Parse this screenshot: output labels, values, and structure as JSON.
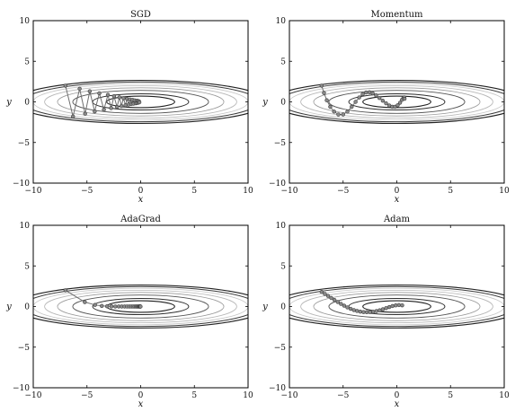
{
  "chart_data": [
    {
      "type": "line",
      "title": "SGD",
      "xlabel": "x",
      "ylabel": "y",
      "xlim": [
        -10,
        10
      ],
      "ylim": [
        -10,
        10
      ],
      "xticks": [
        "−10",
        "−5",
        "0",
        "5",
        "10"
      ],
      "yticks": [
        "10",
        "5",
        "0",
        "−5",
        "−10"
      ],
      "contour_levels": [
        0.5,
        1,
        2,
        3,
        4,
        5,
        6,
        7
      ],
      "series": [
        {
          "x": [
            -7.0,
            -6.3,
            -5.68,
            -5.17,
            -4.74,
            -4.28,
            -3.85,
            -3.42,
            -3.05,
            -2.75,
            -2.48,
            -2.2,
            -1.98,
            -1.79,
            -1.6,
            -1.41,
            -1.27,
            -1.12,
            -1.0,
            -0.88,
            -0.76,
            -0.66,
            -0.56,
            -0.46,
            -0.38,
            -0.32,
            -0.26,
            -0.2,
            -0.16,
            -0.12
          ],
          "y": [
            2.0,
            -1.8,
            1.62,
            -1.46,
            1.31,
            -1.18,
            1.06,
            -0.95,
            0.86,
            -0.77,
            0.69,
            -0.62,
            0.56,
            -0.5,
            0.45,
            -0.41,
            0.37,
            -0.33,
            0.3,
            -0.27,
            0.24,
            -0.22,
            0.19,
            -0.17,
            0.15,
            -0.13,
            0.11,
            -0.09,
            0.07,
            -0.05
          ]
        }
      ]
    },
    {
      "type": "line",
      "title": "Momentum",
      "xlabel": "x",
      "ylabel": "y",
      "xlim": [
        -10,
        10
      ],
      "ylim": [
        -10,
        10
      ],
      "xticks": [
        "−10",
        "−5",
        "0",
        "5",
        "10"
      ],
      "yticks": [
        "10",
        "5",
        "0",
        "−5",
        "−10"
      ],
      "contour_levels": [
        0.5,
        1,
        2,
        3,
        4,
        5,
        6,
        7
      ],
      "series": [
        {
          "x": [
            -7.0,
            -6.78,
            -6.52,
            -6.2,
            -5.84,
            -5.44,
            -5.0,
            -4.6,
            -4.2,
            -3.84,
            -3.5,
            -3.18,
            -2.86,
            -2.55,
            -2.24,
            -1.93,
            -1.62,
            -1.31,
            -1.0,
            -0.7,
            -0.42,
            -0.16,
            0.08,
            0.3,
            0.48,
            0.62,
            0.7,
            0.72
          ],
          "y": [
            2.0,
            1.1,
            0.2,
            -0.6,
            -1.2,
            -1.55,
            -1.55,
            -1.2,
            -0.6,
            0.0,
            0.55,
            0.95,
            1.15,
            1.18,
            1.05,
            0.8,
            0.48,
            0.15,
            -0.18,
            -0.45,
            -0.6,
            -0.6,
            -0.42,
            -0.1,
            0.25,
            0.5,
            0.55,
            0.38
          ]
        }
      ]
    },
    {
      "type": "line",
      "title": "AdaGrad",
      "xlabel": "x",
      "ylabel": "y",
      "xlim": [
        -10,
        10
      ],
      "ylim": [
        -10,
        10
      ],
      "xticks": [
        "−10",
        "−5",
        "0",
        "5",
        "10"
      ],
      "yticks": [
        "10",
        "5",
        "0",
        "−5",
        "−10"
      ],
      "contour_levels": [
        0.5,
        1,
        2,
        3,
        4,
        5,
        6,
        7
      ],
      "series": [
        {
          "x": [
            -7.0,
            -5.2,
            -4.25,
            -3.62,
            -3.13,
            -2.72,
            -2.36,
            -2.04,
            -1.76,
            -1.5,
            -1.27,
            -1.06,
            -0.87,
            -0.71,
            -0.57,
            -0.45,
            -0.35,
            -0.26,
            -0.19,
            -0.13,
            -0.09,
            -0.05,
            -0.03,
            -0.01
          ],
          "y": [
            2.0,
            0.55,
            0.2,
            0.08,
            0.04,
            0.02,
            0.01,
            0.01,
            0.0,
            0.0,
            0.0,
            0.0,
            0.0,
            0.0,
            0.0,
            0.0,
            0.0,
            0.0,
            0.0,
            0.0,
            0.0,
            0.0,
            0.0,
            0.0
          ]
        }
      ]
    },
    {
      "type": "line",
      "title": "Adam",
      "xlabel": "x",
      "ylabel": "y",
      "xlim": [
        -10,
        10
      ],
      "ylim": [
        -10,
        10
      ],
      "xticks": [
        "−10",
        "−5",
        "0",
        "5",
        "10"
      ],
      "yticks": [
        "10",
        "5",
        "0",
        "−5",
        "−10"
      ],
      "contour_levels": [
        0.5,
        1,
        2,
        3,
        4,
        5,
        6,
        7
      ],
      "series": [
        {
          "x": [
            -7.0,
            -6.7,
            -6.4,
            -6.1,
            -5.8,
            -5.5,
            -5.2,
            -4.9,
            -4.6,
            -4.3,
            -4.0,
            -3.7,
            -3.4,
            -3.1,
            -2.8,
            -2.5,
            -2.2,
            -1.9,
            -1.6,
            -1.3,
            -1.0,
            -0.7,
            -0.4,
            -0.1,
            0.2,
            0.5
          ],
          "y": [
            1.8,
            1.55,
            1.3,
            1.05,
            0.8,
            0.56,
            0.32,
            0.1,
            -0.1,
            -0.28,
            -0.43,
            -0.55,
            -0.63,
            -0.68,
            -0.7,
            -0.68,
            -0.64,
            -0.56,
            -0.46,
            -0.34,
            -0.2,
            -0.06,
            0.06,
            0.14,
            0.18,
            0.15
          ]
        }
      ]
    }
  ]
}
